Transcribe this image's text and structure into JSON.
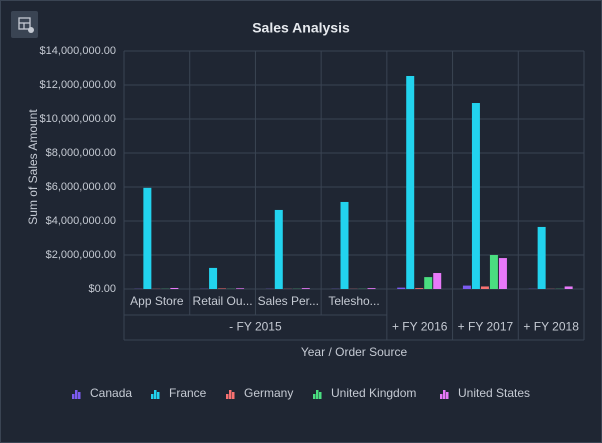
{
  "chart_data": {
    "type": "bar",
    "title": "Sales Analysis",
    "y_label": "Sum of Sales Amount",
    "x_label": "Year / Order Source",
    "categories": [
      "App Store",
      "Retail Ou...",
      "Sales Per...",
      "Telesho...",
      "+ FY 2016",
      "+ FY 2017",
      "+ FY 2018"
    ],
    "category_groups": [
      {
        "label": "- FY 2015",
        "count": 4
      }
    ],
    "series": [
      {
        "name": "Canada",
        "color": "#7c5cf2",
        "values": [
          10000,
          10000,
          10000,
          10000,
          80000,
          200000,
          10000
        ]
      },
      {
        "name": "France",
        "color": "#22d3ee",
        "values": [
          5950000,
          1240000,
          4650000,
          5120000,
          12530000,
          10940000,
          3650000
        ]
      },
      {
        "name": "Germany",
        "color": "#f87171",
        "values": [
          10000,
          30000,
          10000,
          10000,
          50000,
          150000,
          10000
        ]
      },
      {
        "name": "United Kingdom",
        "color": "#4ade80",
        "values": [
          10000,
          10000,
          10000,
          10000,
          700000,
          2000000,
          10000
        ]
      },
      {
        "name": "United States",
        "color": "#e879f9",
        "values": [
          60000,
          40000,
          50000,
          50000,
          940000,
          1820000,
          150000
        ]
      }
    ],
    "ylim": [
      0,
      14000000
    ],
    "yticks": [
      {
        "value": 0,
        "label": "$0.00"
      },
      {
        "value": 2000000,
        "label": "$2,000,000.00"
      },
      {
        "value": 4000000,
        "label": "$4,000,000.00"
      },
      {
        "value": 6000000,
        "label": "$6,000,000.00"
      },
      {
        "value": 8000000,
        "label": "$8,000,000.00"
      },
      {
        "value": 10000000,
        "label": "$10,000,000.00"
      },
      {
        "value": 12000000,
        "label": "$12,000,000.00"
      },
      {
        "value": 14000000,
        "label": "$14,000,000.00"
      }
    ],
    "grid": true,
    "legend": "bottom"
  }
}
